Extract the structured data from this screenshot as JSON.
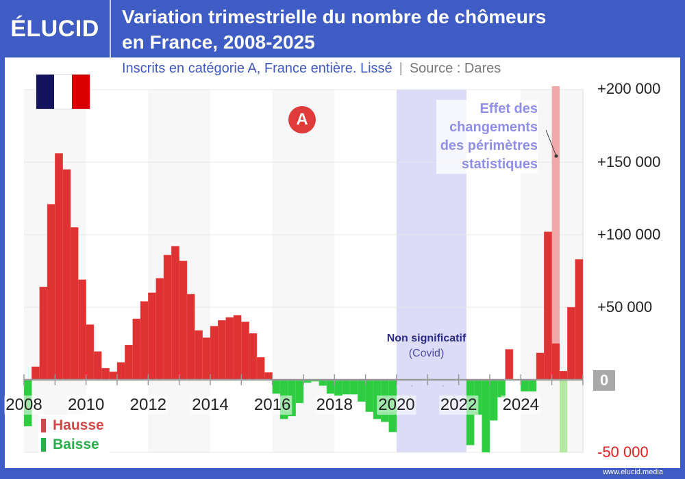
{
  "header": {
    "logo": "ÉLUCID",
    "title_line1": "Variation trimestrielle du nombre de chômeurs",
    "title_line2": "en France, 2008-2025",
    "subtitle": "Inscrits en catégorie A, France entière. Lissé",
    "source": "Source : Dares",
    "separator": "|"
  },
  "footer": {
    "url": "www.elucid.media"
  },
  "annotations": {
    "badge": "A",
    "perimeter_effect": [
      "Effet des",
      "changements",
      "des périmètres",
      "statistiques"
    ],
    "covid_title": "Non significatif",
    "covid_note": "(Covid)"
  },
  "legend": {
    "up": "Hausse",
    "down": "Baisse"
  },
  "colors": {
    "up": "#df3232",
    "down": "#2ecc40",
    "up_pale": "#f0a8a8",
    "down_pale": "#b5e8a0",
    "covid_band": "#dcdcf8",
    "frame": "#3f5bc4",
    "neg_label": "#e02020"
  },
  "chart_data": {
    "type": "bar",
    "title": "Variation trimestrielle du nombre de chômeurs en France, 2008-2025",
    "subtitle": "Inscrits en catégorie A, France entière. Lissé",
    "frequency": "quarterly",
    "x_start": 2008,
    "x_ticks": [
      "2008",
      "2010",
      "2012",
      "2014",
      "2016",
      "2018",
      "2020",
      "2022",
      "2024"
    ],
    "y_ticks": [
      "+200 000",
      "+150 000",
      "+100 000",
      "+50 000",
      "0",
      "-50 000"
    ],
    "ylim": [
      -50000,
      200000
    ],
    "grid": true,
    "legend_position": "bottom-left",
    "values": [
      -32000,
      9000,
      64000,
      121000,
      156000,
      145000,
      105000,
      69000,
      38000,
      19500,
      8000,
      5500,
      12000,
      24000,
      42000,
      54000,
      60000,
      70000,
      86000,
      92000,
      82000,
      59000,
      34000,
      29000,
      37000,
      41000,
      43000,
      44500,
      40000,
      32000,
      15500,
      5000,
      -9500,
      -27000,
      -25000,
      -16000,
      -2000,
      -1000,
      -4000,
      -9500,
      -11000,
      -10000,
      -10000,
      -15000,
      -22000,
      -27000,
      -29000,
      -36000,
      null,
      null,
      null,
      null,
      null,
      null,
      null,
      null,
      null,
      -45000,
      -24000,
      -50000,
      -28000,
      -12000,
      21000,
      0,
      -8000,
      -8000,
      18500,
      102000,
      25000,
      6000,
      50000,
      83000
    ],
    "perimeter_effect": [
      {
        "quarter": "2025 T1",
        "direction": "up",
        "extends_to": 200000
      },
      {
        "quarter": "2025 T2",
        "direction": "down",
        "extends_to": -50000
      }
    ],
    "covid_band": {
      "from": "2020 T1",
      "to": "2022 T1"
    }
  }
}
